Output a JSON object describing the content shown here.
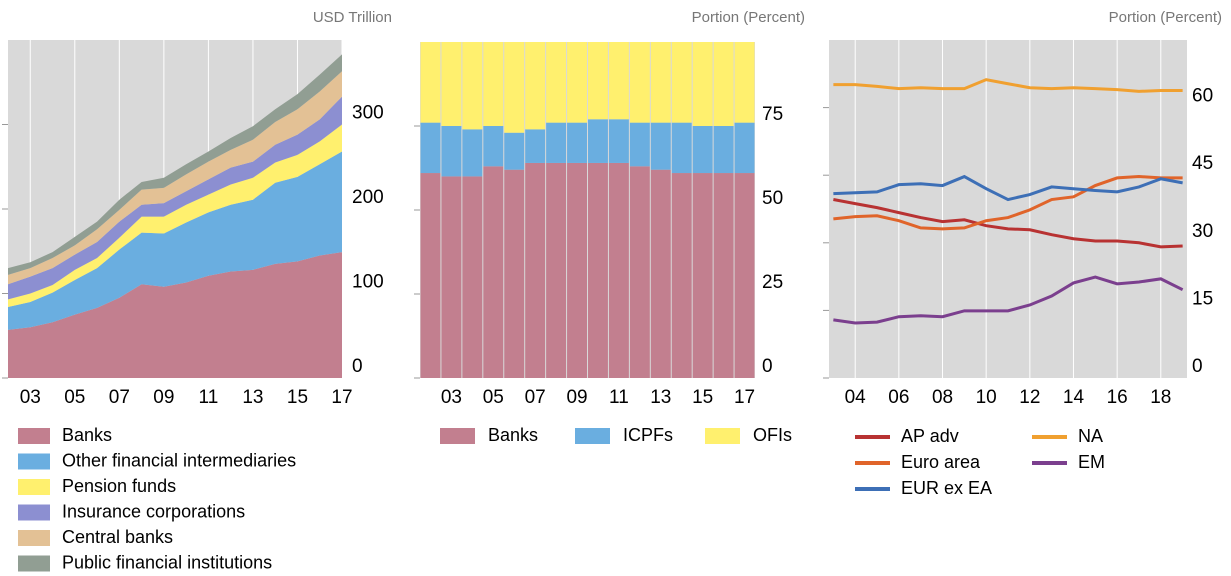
{
  "chart_data": [
    {
      "type": "area",
      "y_label": "USD Trillion",
      "categories": [
        null,
        "03",
        null,
        "05",
        null,
        "07",
        null,
        "09",
        null,
        "11",
        null,
        "13",
        null,
        "15",
        null,
        "17"
      ],
      "ylim": [
        0,
        400
      ],
      "yticks": [
        0,
        100,
        200,
        300
      ],
      "grid": true,
      "series": [
        {
          "name": "Banks",
          "color": "#c27f8f",
          "values": [
            57,
            60,
            66,
            75,
            83,
            95,
            111,
            108,
            113,
            121,
            126,
            128,
            135,
            138,
            145,
            149
          ]
        },
        {
          "name": "Other financial intermediaries",
          "color": "#6aaee0",
          "values": [
            27,
            30,
            35,
            41,
            47,
            57,
            61,
            63,
            71,
            75,
            79,
            83,
            96,
            100,
            108,
            119
          ]
        },
        {
          "name": "Pension funds",
          "color": "#fff06e",
          "values": [
            9,
            10,
            9,
            12,
            12,
            14,
            19,
            20,
            21,
            21,
            24,
            26,
            24,
            26,
            27,
            32
          ]
        },
        {
          "name": "Insurance corporations",
          "color": "#8c8fd1",
          "values": [
            18,
            20,
            20,
            18,
            19,
            19,
            14,
            16,
            16,
            18,
            20,
            19,
            21,
            24,
            26,
            33
          ]
        },
        {
          "name": "Central banks",
          "color": "#e3c195",
          "values": [
            11,
            10,
            12,
            11,
            15,
            14,
            18,
            18,
            20,
            21,
            21,
            26,
            27,
            30,
            33,
            30
          ]
        },
        {
          "name": "Public financial institutions",
          "color": "#919e93",
          "values": [
            8,
            7,
            7,
            10,
            9,
            12,
            9,
            12,
            12,
            12,
            14,
            16,
            15,
            18,
            20,
            20
          ]
        }
      ]
    },
    {
      "type": "bar",
      "y_label": "Portion (Percent)",
      "categories": [
        null,
        "03",
        null,
        "05",
        null,
        "07",
        null,
        "09",
        null,
        "11",
        null,
        "13",
        null,
        "15",
        null,
        "17"
      ],
      "ylim": [
        0,
        100
      ],
      "yticks": [
        0,
        25,
        50,
        75
      ],
      "series": [
        {
          "name": "Banks",
          "color": "#c27f8f",
          "values": [
            61,
            60,
            60,
            63,
            62,
            64,
            64,
            64,
            64,
            64,
            63,
            62,
            61,
            61,
            61,
            61
          ]
        },
        {
          "name": "ICPFs",
          "color": "#6aaee0",
          "values": [
            15,
            15,
            14,
            12,
            11,
            10,
            12,
            12,
            13,
            13,
            13,
            14,
            15,
            14,
            14,
            15
          ]
        },
        {
          "name": "OFIs",
          "color": "#fff06e",
          "values": [
            24,
            25,
            26,
            25,
            27,
            26,
            24,
            24,
            23,
            23,
            24,
            24,
            24,
            25,
            25,
            24
          ]
        }
      ]
    },
    {
      "type": "line",
      "y_label": "Portion (Percent)",
      "x": [
        2003,
        2004,
        2005,
        2006,
        2007,
        2008,
        2009,
        2010,
        2011,
        2012,
        2013,
        2014,
        2015,
        2016,
        2017,
        2018,
        2019
      ],
      "xlim": [
        2002.8,
        2019.2
      ],
      "xticks": [
        {
          "value": 2004,
          "label": "04"
        },
        {
          "value": 2006,
          "label": "06"
        },
        {
          "value": 2008,
          "label": "08"
        },
        {
          "value": 2010,
          "label": "10"
        },
        {
          "value": 2012,
          "label": "12"
        },
        {
          "value": 2014,
          "label": "14"
        },
        {
          "value": 2016,
          "label": "16"
        },
        {
          "value": 2018,
          "label": "18"
        }
      ],
      "ylim": [
        0,
        75
      ],
      "yticks": [
        0,
        15,
        30,
        45,
        60
      ],
      "grid": true,
      "series": [
        {
          "name": "AP adv",
          "color": "#b83232",
          "values": [
            39.6,
            38.7,
            37.8,
            36.7,
            35.6,
            34.7,
            35.1,
            33.8,
            33.1,
            32.9,
            31.8,
            30.9,
            30.4,
            30.4,
            30,
            29.1,
            29.3
          ]
        },
        {
          "name": "Euro area",
          "color": "#e0642a",
          "values": [
            35.3,
            35.8,
            36,
            34.9,
            33.3,
            33.1,
            33.3,
            34.9,
            35.6,
            37.3,
            39.6,
            40.2,
            42.7,
            44.4,
            44.7,
            44.4,
            44.4
          ]
        },
        {
          "name": "EUR ex EA",
          "color": "#3d6fb6",
          "values": [
            40.9,
            41.1,
            41.3,
            42.9,
            43.1,
            42.7,
            44.7,
            42,
            39.6,
            40.7,
            42.4,
            42,
            41.6,
            41.3,
            42.4,
            44.2,
            43.3
          ]
        },
        {
          "name": "NA",
          "color": "#f0a030",
          "values": [
            65.1,
            65.1,
            64.7,
            64.2,
            64.4,
            64.2,
            64.2,
            66.2,
            65.3,
            64.4,
            64.2,
            64.4,
            64.2,
            64,
            63.6,
            63.8,
            63.8
          ]
        },
        {
          "name": "EM",
          "color": "#7b3f8e",
          "values": [
            12.9,
            12.2,
            12.4,
            13.6,
            13.8,
            13.6,
            14.9,
            14.9,
            14.9,
            16.2,
            18.2,
            21.1,
            22.4,
            20.9,
            21.3,
            22,
            19.6
          ]
        }
      ]
    }
  ]
}
